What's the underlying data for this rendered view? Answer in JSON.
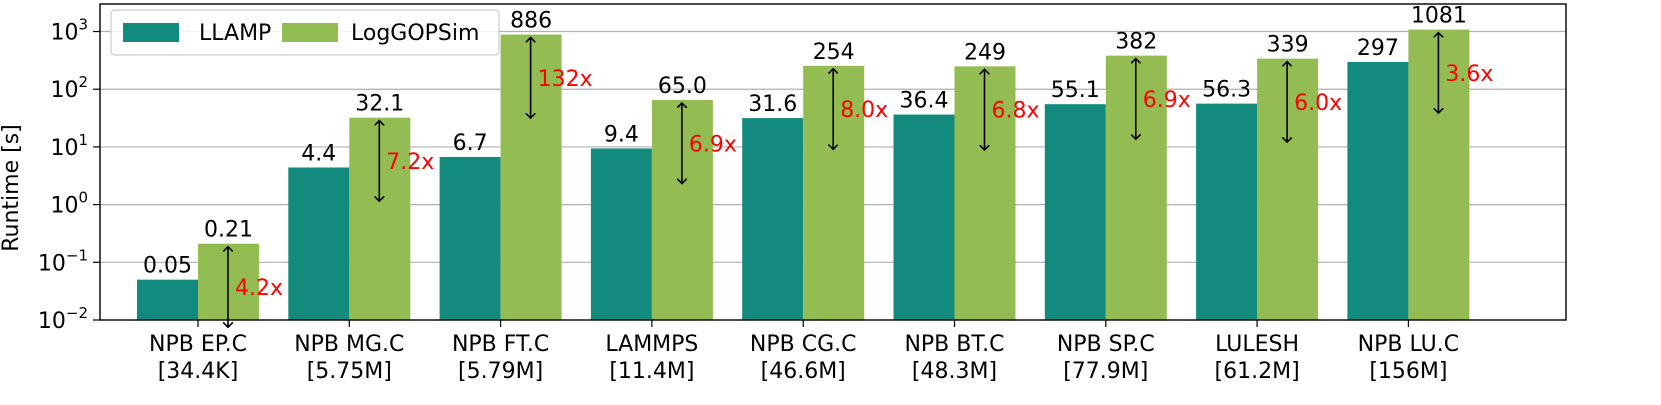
{
  "chart_data": {
    "type": "bar",
    "ylabel": "Runtime [s]",
    "yscale": "log",
    "ylim": [
      0.01,
      3000
    ],
    "grid": "y-major",
    "legend_position": "top-left",
    "yticks": [
      {
        "value": 0.01,
        "base": "10",
        "exp": "−2"
      },
      {
        "value": 0.1,
        "base": "10",
        "exp": "−1"
      },
      {
        "value": 1,
        "base": "10",
        "exp": "0"
      },
      {
        "value": 10,
        "base": "10",
        "exp": "1"
      },
      {
        "value": 100,
        "base": "10",
        "exp": "2"
      },
      {
        "value": 1000,
        "base": "10",
        "exp": "3"
      }
    ],
    "categories": [
      {
        "name": "NPB EP.C",
        "size": "[34.4K]"
      },
      {
        "name": "NPB MG.C",
        "size": "[5.75M]"
      },
      {
        "name": "NPB FT.C",
        "size": "[5.79M]"
      },
      {
        "name": "LAMMPS",
        "size": "[11.4M]"
      },
      {
        "name": "NPB CG.C",
        "size": "[46.6M]"
      },
      {
        "name": "NPB BT.C",
        "size": "[48.3M]"
      },
      {
        "name": "NPB SP.C",
        "size": "[77.9M]"
      },
      {
        "name": "LULESH",
        "size": "[61.2M]"
      },
      {
        "name": "NPB LU.C",
        "size": "[156M]"
      }
    ],
    "series": [
      {
        "name": "LLAMP",
        "color": "#138a7e",
        "values": [
          0.05,
          4.4,
          6.7,
          9.4,
          31.6,
          36.4,
          55.1,
          56.3,
          297
        ],
        "labels": [
          "0.05",
          "4.4",
          "6.7",
          "9.4",
          "31.6",
          "36.4",
          "55.1",
          "56.3",
          "297"
        ]
      },
      {
        "name": "LogGOPSim",
        "color": "#93bc52",
        "values": [
          0.21,
          32.1,
          886,
          65.0,
          254,
          249,
          382,
          339,
          1081
        ],
        "labels": [
          "0.21",
          "32.1",
          "886",
          "65.0",
          "254",
          "249",
          "382",
          "339",
          "1081"
        ]
      }
    ],
    "speedups": [
      "4.2x",
      "7.2x",
      "132x",
      "6.9x",
      "8.0x",
      "6.8x",
      "6.9x",
      "6.0x",
      "3.6x"
    ],
    "speedup_color": "#ff0000"
  }
}
